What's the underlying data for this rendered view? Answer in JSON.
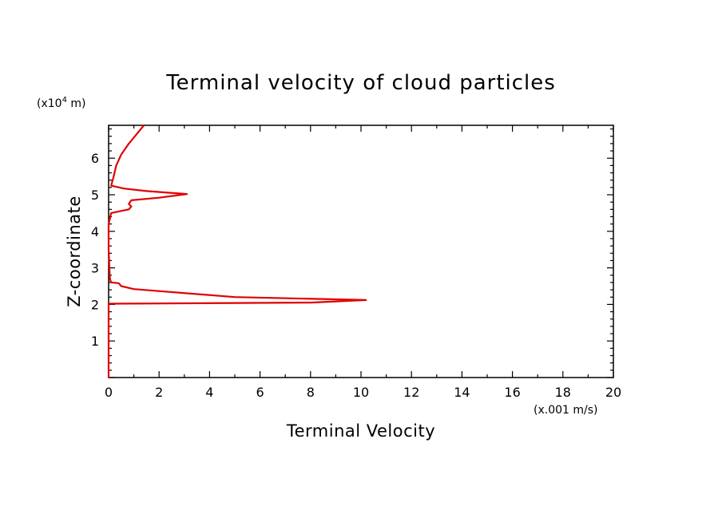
{
  "chart_data": {
    "type": "line",
    "title": "Terminal velocity of cloud particles",
    "xlabel": "Terminal Velocity",
    "ylabel": "Z-coordinate",
    "x_unit": "(x.001 m/s)",
    "y_unit_prefix": "(x10",
    "y_unit_exp": "4",
    "y_unit_suffix": " m)",
    "xlim": [
      0,
      20
    ],
    "ylim": [
      0,
      6.9
    ],
    "x_ticks": [
      0,
      2,
      4,
      6,
      8,
      10,
      12,
      14,
      16,
      18,
      20
    ],
    "y_ticks": [
      1,
      2,
      3,
      4,
      5,
      6
    ],
    "grid": false,
    "series": [
      {
        "color": "#e00000",
        "points": [
          [
            0,
            0
          ],
          [
            0,
            2.02
          ],
          [
            8,
            2.05
          ],
          [
            10.2,
            2.12
          ],
          [
            5,
            2.2
          ],
          [
            1,
            2.42
          ],
          [
            0.5,
            2.5
          ],
          [
            0.4,
            2.58
          ],
          [
            0.1,
            2.6
          ],
          [
            0.05,
            2.7
          ],
          [
            0,
            3.5
          ],
          [
            0,
            4.2
          ],
          [
            0.1,
            4.5
          ],
          [
            0.8,
            4.6
          ],
          [
            0.9,
            4.68
          ],
          [
            0.8,
            4.75
          ],
          [
            0.9,
            4.85
          ],
          [
            2,
            4.92
          ],
          [
            3.1,
            5.02
          ],
          [
            1.5,
            5.1
          ],
          [
            0.6,
            5.17
          ],
          [
            0.1,
            5.25
          ],
          [
            0.2,
            5.5
          ],
          [
            0.3,
            5.8
          ],
          [
            0.5,
            6.1
          ],
          [
            0.8,
            6.4
          ],
          [
            1.1,
            6.65
          ],
          [
            1.4,
            6.9
          ]
        ]
      }
    ]
  }
}
